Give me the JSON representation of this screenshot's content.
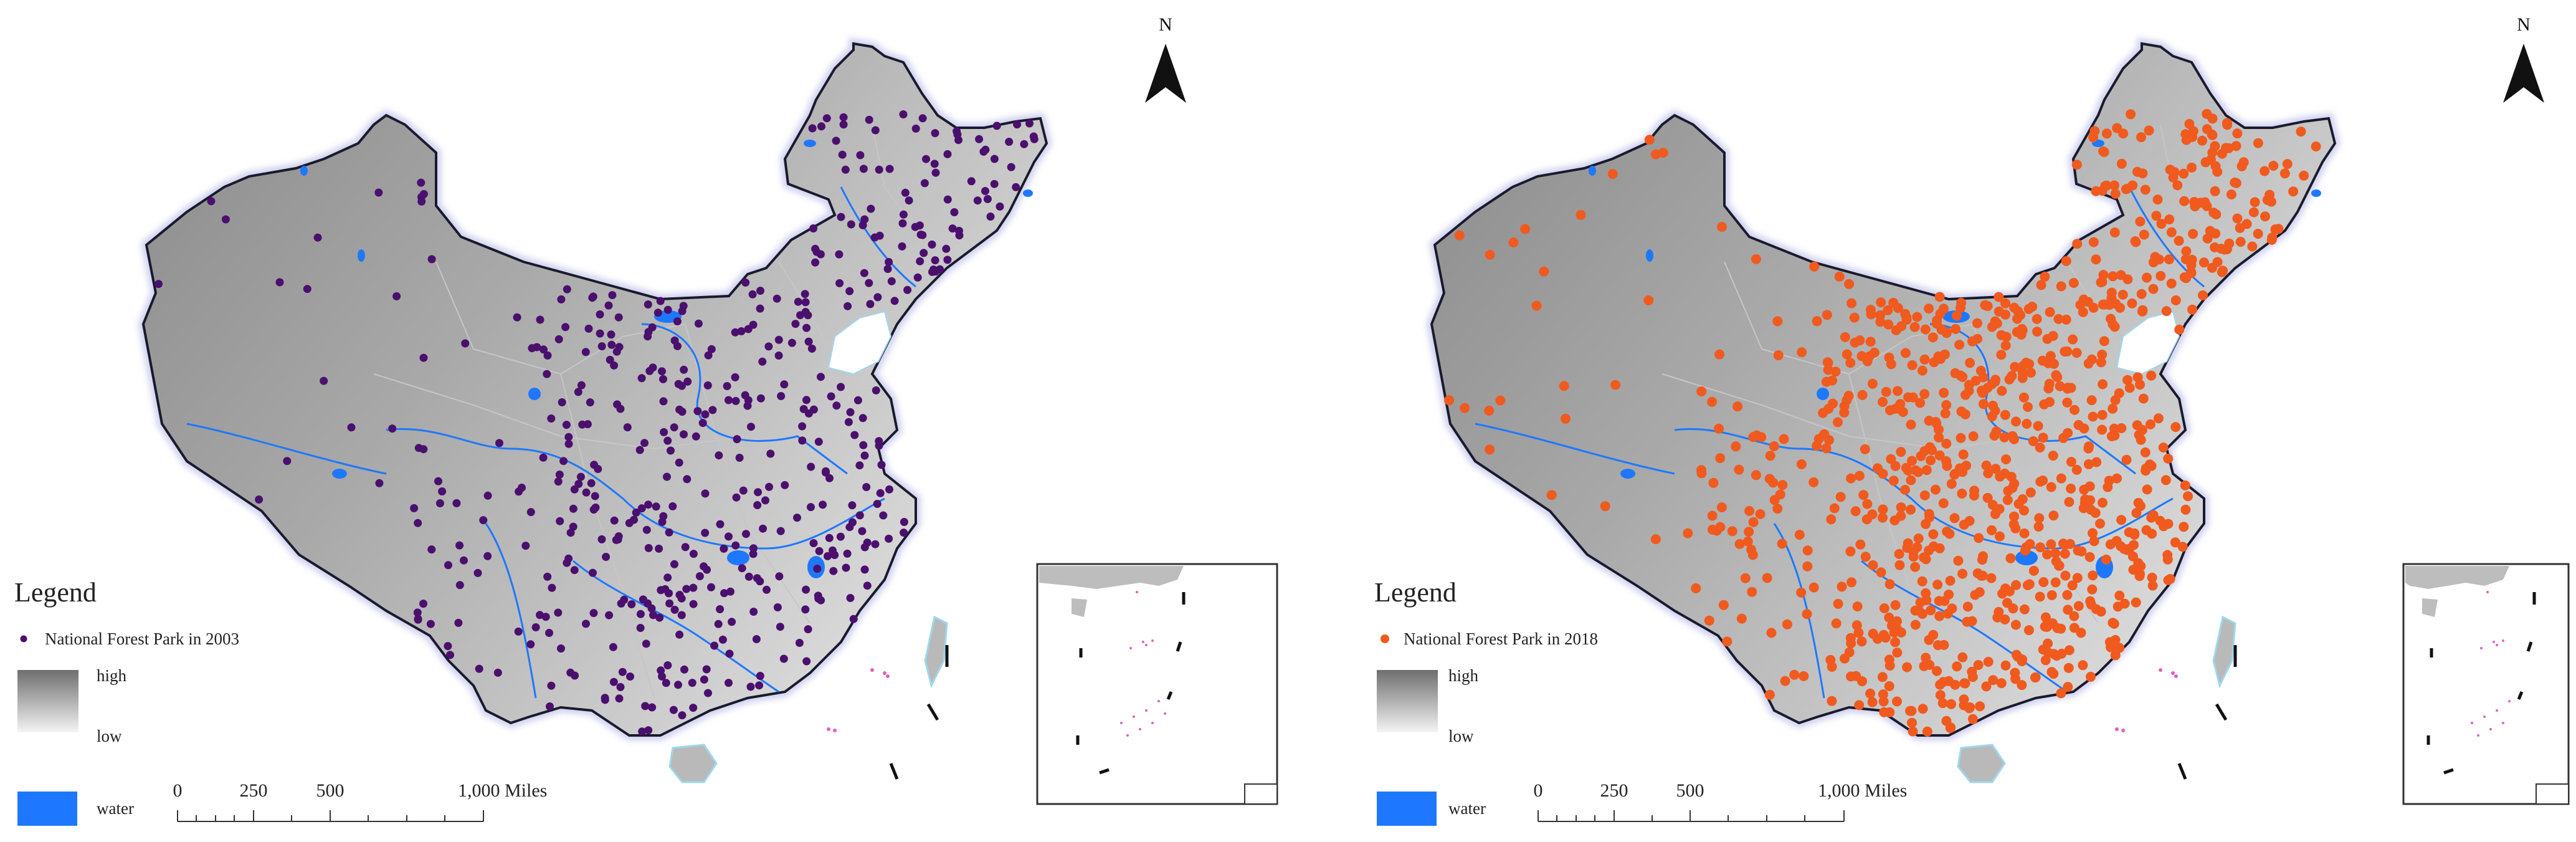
{
  "maps": [
    {
      "id": "map-2003",
      "legend_title": "Legend",
      "point_label": "National Forest Park in 2003",
      "point_color": "#4b0f6e",
      "high_label": "high",
      "low_label": "low",
      "water_label": "water",
      "north_label": "N",
      "scale_ticks": [
        "0",
        "250",
        "500",
        "1,000 Miles"
      ],
      "density": 0.55
    },
    {
      "id": "map-2018",
      "legend_title": "Legend",
      "point_label": "National Forest Park in 2018",
      "point_color": "#f05a1e",
      "high_label": "high",
      "low_label": "low",
      "water_label": "water",
      "north_label": "N",
      "scale_ticks": [
        "0",
        "250",
        "500",
        "1,000 Miles"
      ],
      "density": 1.0
    }
  ],
  "colors": {
    "terrain_high": "#8a8a8a",
    "terrain_low": "#e6e6e6",
    "water": "#1e78ff",
    "border": "#1a1a2e",
    "coast_glow": "#cfd0ee",
    "islands": "#e060c0"
  }
}
